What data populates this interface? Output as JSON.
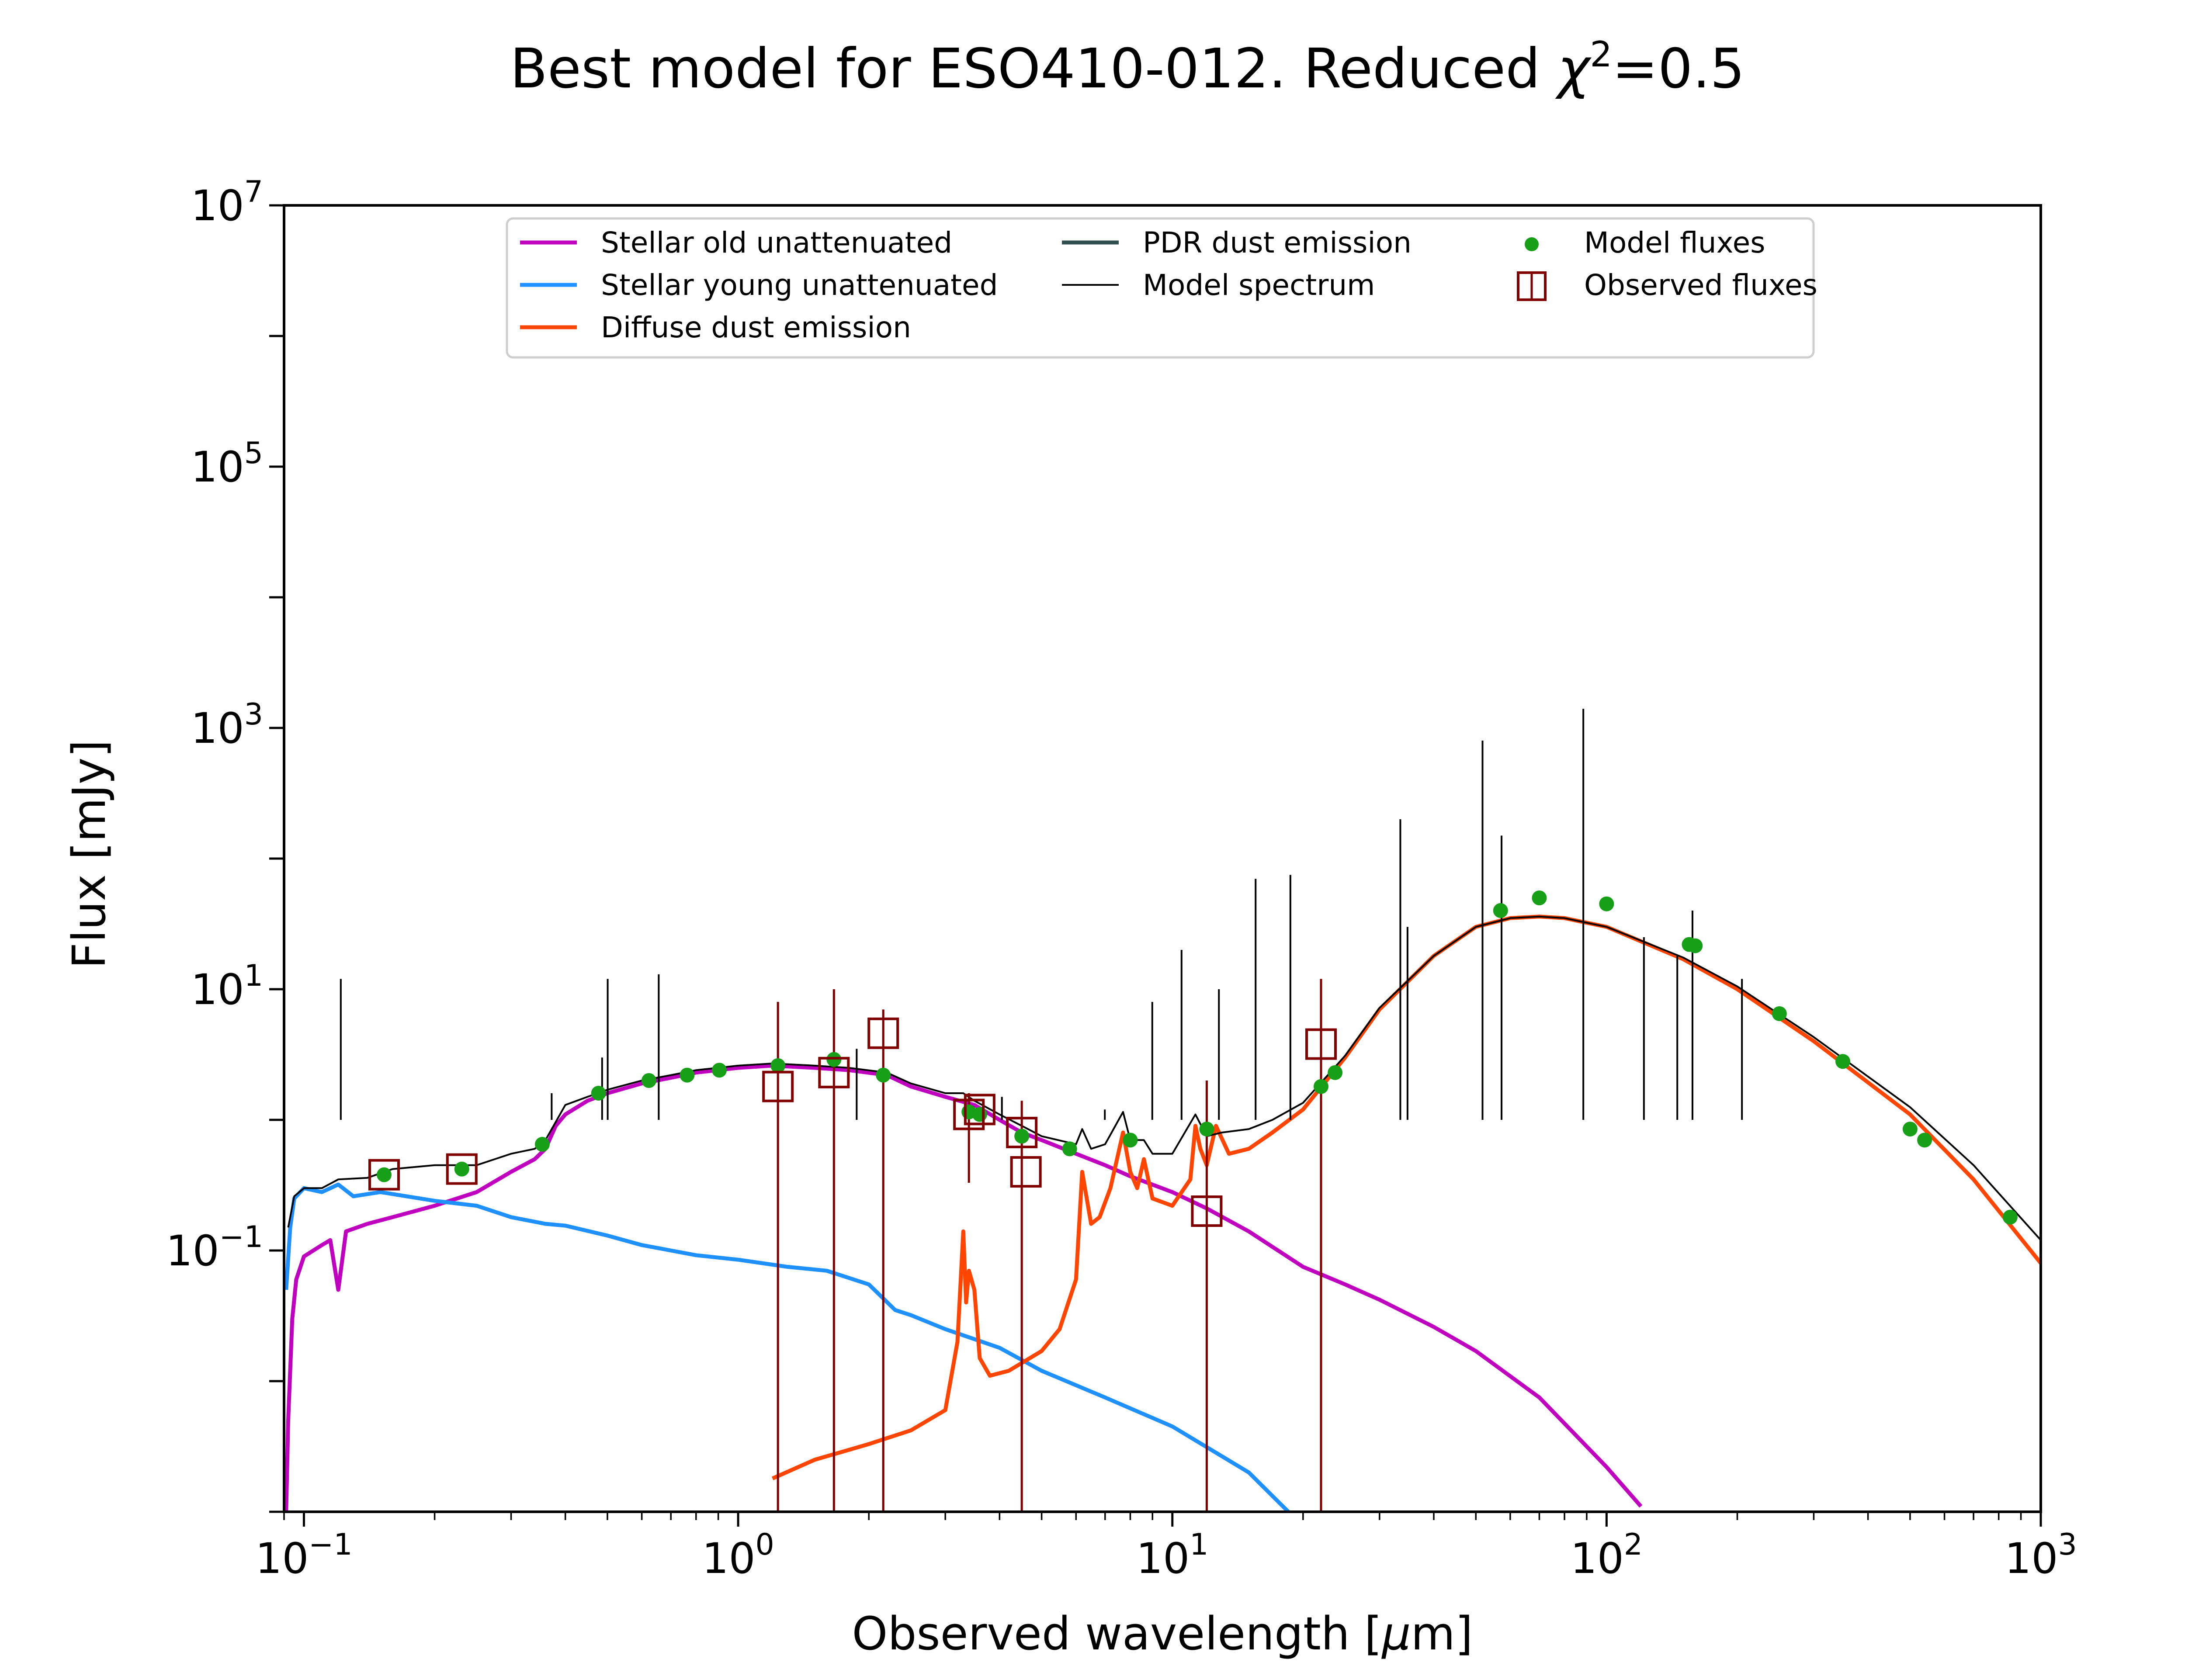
{
  "chart_data": {
    "type": "line",
    "title": "Best model for ESO410-012. Reduced χ²=0.5",
    "title_main": "Best model for ESO410-012. Reduced ",
    "title_chi": "χ",
    "title_chi_exp": "2",
    "title_tail": "=0.5",
    "xlabel": "Observed wavelength [μm]",
    "xlabel_main": "Observed wavelength [",
    "xlabel_mu": "μ",
    "xlabel_tail": "m]",
    "ylabel": "Flux [mJy]",
    "x_scale": "log",
    "y_scale": "log",
    "xlim": [
      0.09,
      1000
    ],
    "ylim": [
      0.001,
      10000000
    ],
    "x_ticks": [
      {
        "value": 0.1,
        "base": "10",
        "exp": "−1"
      },
      {
        "value": 1,
        "base": "10",
        "exp": "0"
      },
      {
        "value": 10,
        "base": "10",
        "exp": "1"
      },
      {
        "value": 100,
        "base": "10",
        "exp": "2"
      },
      {
        "value": 1000,
        "base": "10",
        "exp": "3"
      }
    ],
    "y_ticks": [
      {
        "value": 0.1,
        "base": "10",
        "exp": "−1"
      },
      {
        "value": 10,
        "base": "10",
        "exp": "1"
      },
      {
        "value": 1000,
        "base": "10",
        "exp": "3"
      },
      {
        "value": 100000,
        "base": "10",
        "exp": "5"
      },
      {
        "value": 10000000,
        "base": "10",
        "exp": "7"
      }
    ],
    "grid": false,
    "legend_position": "top-center",
    "legend_entries": [
      {
        "name": "Stellar old unattenuated",
        "marker": "line",
        "color": "#bf00bf"
      },
      {
        "name": "Stellar young unattenuated",
        "marker": "line",
        "color": "#1e90ff"
      },
      {
        "name": "Diffuse dust emission",
        "marker": "line",
        "color": "#ff4500"
      },
      {
        "name": "PDR dust emission",
        "marker": "line",
        "color": "#2f4f4f"
      },
      {
        "name": "Model spectrum",
        "marker": "thin-line",
        "color": "#000000"
      },
      {
        "name": "Model fluxes",
        "marker": "dot",
        "color": "#17a017"
      },
      {
        "name": "Observed fluxes",
        "marker": "square",
        "color": "#800000"
      }
    ],
    "series": [
      {
        "name": "Stellar old unattenuated",
        "color": "#bf00bf",
        "points": [
          [
            0.091,
            0.001
          ],
          [
            0.092,
            0.005
          ],
          [
            0.094,
            0.03
          ],
          [
            0.096,
            0.06
          ],
          [
            0.1,
            0.09
          ],
          [
            0.11,
            0.11
          ],
          [
            0.115,
            0.12
          ],
          [
            0.12,
            0.05
          ],
          [
            0.125,
            0.14
          ],
          [
            0.14,
            0.16
          ],
          [
            0.16,
            0.18
          ],
          [
            0.2,
            0.22
          ],
          [
            0.25,
            0.28
          ],
          [
            0.3,
            0.4
          ],
          [
            0.34,
            0.5
          ],
          [
            0.36,
            0.6
          ],
          [
            0.38,
            0.9
          ],
          [
            0.4,
            1.1
          ],
          [
            0.45,
            1.4
          ],
          [
            0.5,
            1.6
          ],
          [
            0.6,
            1.9
          ],
          [
            0.7,
            2.1
          ],
          [
            0.8,
            2.3
          ],
          [
            1.0,
            2.5
          ],
          [
            1.2,
            2.6
          ],
          [
            1.5,
            2.5
          ],
          [
            1.8,
            2.4
          ],
          [
            2.2,
            2.2
          ],
          [
            2.5,
            1.8
          ],
          [
            3.0,
            1.5
          ],
          [
            3.5,
            1.3
          ],
          [
            4.0,
            1.0
          ],
          [
            4.5,
            0.8
          ],
          [
            5.0,
            0.7
          ],
          [
            6.0,
            0.55
          ],
          [
            7.0,
            0.45
          ],
          [
            8.0,
            0.37
          ],
          [
            10.0,
            0.28
          ],
          [
            12.0,
            0.21
          ],
          [
            15.0,
            0.14
          ],
          [
            20.0,
            0.075
          ],
          [
            25.0,
            0.055
          ],
          [
            30.0,
            0.042
          ],
          [
            40.0,
            0.026
          ],
          [
            50.0,
            0.017
          ],
          [
            70.0,
            0.0075
          ],
          [
            100.0,
            0.0022
          ],
          [
            120.0,
            0.0011
          ]
        ]
      },
      {
        "name": "Stellar young unattenuated",
        "color": "#1e90ff",
        "points": [
          [
            0.091,
            0.05
          ],
          [
            0.093,
            0.15
          ],
          [
            0.095,
            0.25
          ],
          [
            0.1,
            0.3
          ],
          [
            0.11,
            0.28
          ],
          [
            0.12,
            0.32
          ],
          [
            0.13,
            0.26
          ],
          [
            0.15,
            0.28
          ],
          [
            0.2,
            0.24
          ],
          [
            0.25,
            0.22
          ],
          [
            0.3,
            0.18
          ],
          [
            0.36,
            0.16
          ],
          [
            0.4,
            0.155
          ],
          [
            0.5,
            0.13
          ],
          [
            0.6,
            0.11
          ],
          [
            0.7,
            0.1
          ],
          [
            0.8,
            0.092
          ],
          [
            1.0,
            0.085
          ],
          [
            1.3,
            0.075
          ],
          [
            1.6,
            0.07
          ],
          [
            2.0,
            0.055
          ],
          [
            2.3,
            0.035
          ],
          [
            2.5,
            0.032
          ],
          [
            3.0,
            0.025
          ],
          [
            4.0,
            0.018
          ],
          [
            5.0,
            0.012
          ],
          [
            7.0,
            0.0075
          ],
          [
            10.0,
            0.0045
          ],
          [
            15.0,
            0.002
          ],
          [
            18.5,
            0.001
          ]
        ]
      },
      {
        "name": "Diffuse dust emission",
        "color": "#ff4500",
        "points": [
          [
            1.2,
            0.0018
          ],
          [
            1.5,
            0.0025
          ],
          [
            2.0,
            0.0033
          ],
          [
            2.5,
            0.0042
          ],
          [
            3.0,
            0.006
          ],
          [
            3.2,
            0.02
          ],
          [
            3.3,
            0.14
          ],
          [
            3.35,
            0.04
          ],
          [
            3.4,
            0.07
          ],
          [
            3.5,
            0.05
          ],
          [
            3.6,
            0.015
          ],
          [
            3.8,
            0.011
          ],
          [
            4.2,
            0.012
          ],
          [
            5.0,
            0.017
          ],
          [
            5.5,
            0.025
          ],
          [
            6.0,
            0.06
          ],
          [
            6.2,
            0.4
          ],
          [
            6.5,
            0.16
          ],
          [
            6.8,
            0.18
          ],
          [
            7.2,
            0.3
          ],
          [
            7.7,
            0.8
          ],
          [
            8.0,
            0.4
          ],
          [
            8.3,
            0.3
          ],
          [
            8.6,
            0.5
          ],
          [
            9.0,
            0.25
          ],
          [
            10.0,
            0.22
          ],
          [
            11.0,
            0.35
          ],
          [
            11.3,
            0.9
          ],
          [
            11.6,
            0.6
          ],
          [
            12.0,
            0.45
          ],
          [
            12.6,
            0.9
          ],
          [
            13.5,
            0.55
          ],
          [
            15.0,
            0.6
          ],
          [
            17.0,
            0.8
          ],
          [
            20.0,
            1.2
          ],
          [
            25.0,
            3.0
          ],
          [
            30.0,
            7.0
          ],
          [
            40.0,
            18.0
          ],
          [
            50.0,
            30.0
          ],
          [
            60.0,
            35.0
          ],
          [
            70.0,
            36.0
          ],
          [
            80.0,
            35.0
          ],
          [
            100.0,
            30.0
          ],
          [
            150.0,
            17.0
          ],
          [
            200.0,
            10.0
          ],
          [
            300.0,
            4.0
          ],
          [
            500.0,
            1.1
          ],
          [
            700.0,
            0.35
          ],
          [
            1000.0,
            0.08
          ]
        ]
      },
      {
        "name": "Model spectrum",
        "color": "#000000",
        "points": [
          [
            0.092,
            0.15
          ],
          [
            0.095,
            0.26
          ],
          [
            0.1,
            0.3
          ],
          [
            0.11,
            0.3
          ],
          [
            0.12,
            0.35
          ],
          [
            0.14,
            0.36
          ],
          [
            0.16,
            0.42
          ],
          [
            0.2,
            0.45
          ],
          [
            0.25,
            0.45
          ],
          [
            0.3,
            0.55
          ],
          [
            0.34,
            0.6
          ],
          [
            0.36,
            0.7
          ],
          [
            0.4,
            1.3
          ],
          [
            0.45,
            1.5
          ],
          [
            0.5,
            1.7
          ],
          [
            0.6,
            2.0
          ],
          [
            0.7,
            2.2
          ],
          [
            0.8,
            2.4
          ],
          [
            1.0,
            2.6
          ],
          [
            1.2,
            2.7
          ],
          [
            1.5,
            2.6
          ],
          [
            1.8,
            2.5
          ],
          [
            2.2,
            2.3
          ],
          [
            2.5,
            1.9
          ],
          [
            3.0,
            1.6
          ],
          [
            3.3,
            1.6
          ],
          [
            3.5,
            1.4
          ],
          [
            4.0,
            1.1
          ],
          [
            4.5,
            0.9
          ],
          [
            5.0,
            0.75
          ],
          [
            6.0,
            0.65
          ],
          [
            6.2,
            0.85
          ],
          [
            6.5,
            0.6
          ],
          [
            7.0,
            0.65
          ],
          [
            7.7,
            1.15
          ],
          [
            8.0,
            0.7
          ],
          [
            8.6,
            0.7
          ],
          [
            9.0,
            0.55
          ],
          [
            10.0,
            0.55
          ],
          [
            11.3,
            1.1
          ],
          [
            12.0,
            0.75
          ],
          [
            13.0,
            0.8
          ],
          [
            15.0,
            0.85
          ],
          [
            17.0,
            1.0
          ],
          [
            20.0,
            1.35
          ],
          [
            25.0,
            3.1
          ],
          [
            30.0,
            7.2
          ],
          [
            40.0,
            18.0
          ],
          [
            50.0,
            30.0
          ],
          [
            60.0,
            35.0
          ],
          [
            70.0,
            36.0
          ],
          [
            80.0,
            35.0
          ],
          [
            100.0,
            30.0
          ],
          [
            150.0,
            17.5
          ],
          [
            200.0,
            10.5
          ],
          [
            300.0,
            4.3
          ],
          [
            500.0,
            1.25
          ],
          [
            700.0,
            0.45
          ],
          [
            1000.0,
            0.12
          ]
        ]
      }
    ],
    "emission_lines": [
      [
        0.1216,
        12.0
      ],
      [
        0.372,
        1.6
      ],
      [
        0.4861,
        3.0
      ],
      [
        0.5007,
        12.0
      ],
      [
        0.6563,
        13.0
      ],
      [
        1.875,
        3.5
      ],
      [
        4.05,
        1.5
      ],
      [
        6.99,
        1.2
      ],
      [
        8.99,
        8.0
      ],
      [
        10.5,
        20.0
      ],
      [
        12.8,
        10.0
      ],
      [
        15.55,
        70.0
      ],
      [
        18.7,
        75.0
      ],
      [
        33.5,
        200.0
      ],
      [
        34.8,
        30.0
      ],
      [
        51.8,
        800.0
      ],
      [
        57.3,
        150.0
      ],
      [
        88.4,
        1400.0
      ],
      [
        121.9,
        25.0
      ],
      [
        145.5,
        18.0
      ],
      [
        157.7,
        40.0
      ],
      [
        205.0,
        12.0
      ]
    ],
    "model_fluxes": [
      [
        0.153,
        0.38
      ],
      [
        0.231,
        0.42
      ],
      [
        0.354,
        0.65
      ],
      [
        0.477,
        1.6
      ],
      [
        0.623,
        2.0
      ],
      [
        0.763,
        2.2
      ],
      [
        0.905,
        2.4
      ],
      [
        1.235,
        2.6
      ],
      [
        1.662,
        2.9
      ],
      [
        2.159,
        2.2
      ],
      [
        3.4,
        1.15
      ],
      [
        3.6,
        1.1
      ],
      [
        4.5,
        0.75
      ],
      [
        5.8,
        0.6
      ],
      [
        8.0,
        0.7
      ],
      [
        12.0,
        0.85
      ],
      [
        22.0,
        1.8
      ],
      [
        23.7,
        2.3
      ],
      [
        57.0,
        40.0
      ],
      [
        70.0,
        50.0
      ],
      [
        100.0,
        45.0
      ],
      [
        155.0,
        22.0
      ],
      [
        160.0,
        21.5
      ],
      [
        250.0,
        6.5
      ],
      [
        350.0,
        2.8
      ],
      [
        500.0,
        0.85
      ],
      [
        540.0,
        0.7
      ],
      [
        850.0,
        0.18
      ]
    ],
    "observed_fluxes": [
      {
        "x": 0.153,
        "y": 0.38,
        "ylow": null,
        "yhigh": null
      },
      {
        "x": 0.231,
        "y": 0.42,
        "ylow": null,
        "yhigh": null
      },
      {
        "x": 1.235,
        "y": 1.8,
        "ylow": 0.001,
        "yhigh": 8.0
      },
      {
        "x": 1.662,
        "y": 2.3,
        "ylow": 0.001,
        "yhigh": 10.0
      },
      {
        "x": 2.159,
        "y": 4.6,
        "ylow": 0.001,
        "yhigh": 7.0
      },
      {
        "x": 3.4,
        "y": 1.1,
        "ylow": 0.33,
        "yhigh": 1.6
      },
      {
        "x": 3.6,
        "y": 1.2,
        "ylow": null,
        "yhigh": null
      },
      {
        "x": 4.5,
        "y": 0.8,
        "ylow": 0.001,
        "yhigh": 1.4
      },
      {
        "x": 4.6,
        "y": 0.4,
        "ylow": null,
        "yhigh": null
      },
      {
        "x": 12.0,
        "y": 0.2,
        "ylow": 0.001,
        "yhigh": 2.0
      },
      {
        "x": 22.0,
        "y": 3.8,
        "ylow": 0.001,
        "yhigh": 12.0
      }
    ]
  }
}
